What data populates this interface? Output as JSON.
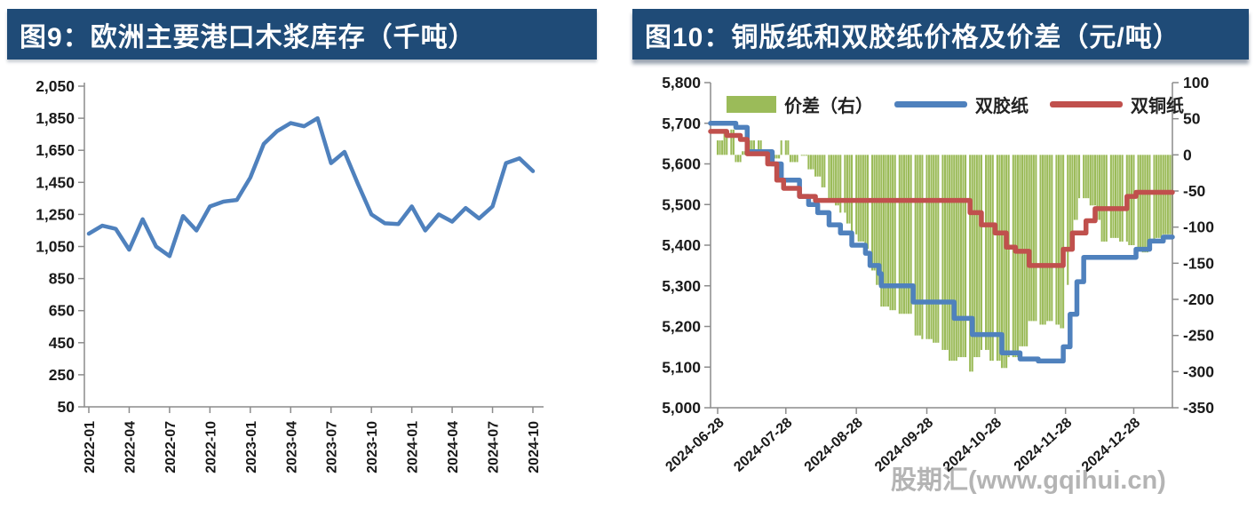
{
  "panels": {
    "left": {
      "title": "图9：欧洲主要港口木浆库存（千吨）"
    },
    "right": {
      "title": "图10：铜版纸和双胶纸价格及价差（元/吨）"
    }
  },
  "watermark": {
    "text": "股期汇(www.gqihui.cn)",
    "color": "#b4b4b4"
  },
  "colors": {
    "title_bar": "#1f4b77",
    "title_text": "#ffffff",
    "axis": "#8c8c8c",
    "tick_text": "#1a1a1a"
  },
  "chart_data": [
    {
      "type": "line",
      "title": "欧洲主要港口木浆库存",
      "unit": "千吨",
      "x": [
        "2022-01",
        "2022-02",
        "2022-03",
        "2022-04",
        "2022-05",
        "2022-06",
        "2022-07",
        "2022-08",
        "2022-09",
        "2022-10",
        "2022-11",
        "2022-12",
        "2023-01",
        "2023-02",
        "2023-03",
        "2023-04",
        "2023-05",
        "2023-06",
        "2023-07",
        "2023-08",
        "2023-09",
        "2023-10",
        "2023-11",
        "2023-12",
        "2024-01",
        "2024-02",
        "2024-03",
        "2024-04",
        "2024-05",
        "2024-06",
        "2024-07",
        "2024-08",
        "2024-09",
        "2024-10"
      ],
      "values": [
        1130,
        1180,
        1160,
        1030,
        1220,
        1050,
        990,
        1240,
        1150,
        1300,
        1330,
        1340,
        1480,
        1690,
        1770,
        1820,
        1800,
        1850,
        1570,
        1640,
        1440,
        1250,
        1195,
        1190,
        1300,
        1150,
        1250,
        1205,
        1290,
        1225,
        1300,
        1570,
        1600,
        1520
      ],
      "x_tick_labels": [
        "2022-01",
        "2022-04",
        "2022-07",
        "2022-10",
        "2023-01",
        "2023-04",
        "2023-07",
        "2023-10",
        "2024-01",
        "2024-04",
        "2024-07",
        "2024-10"
      ],
      "ylim": [
        50,
        2050
      ],
      "y_tick_values": [
        2050,
        1850,
        1650,
        1450,
        1250,
        1050,
        850,
        650,
        450,
        250,
        50
      ],
      "y_tick_labels": [
        "2,050",
        "1,850",
        "1,650",
        "1,450",
        "1,250",
        "1,050",
        "850",
        "650",
        "450",
        "250",
        "50"
      ],
      "line_color": "#4f81bd",
      "axis_color": "#8c8c8c",
      "grid": false,
      "legend_position": "none"
    },
    {
      "type": "combo",
      "title": "铜版纸和双胶纸价格及价差",
      "unit": "元/吨",
      "x_tick_labels": [
        "2024-06-28",
        "2024-07-28",
        "2024-08-28",
        "2024-09-28",
        "2024-10-28",
        "2024-11-28",
        "2024-12-28"
      ],
      "x_tick_days": [
        0,
        30,
        61,
        92,
        122,
        153,
        183
      ],
      "x_range_days": [
        0,
        200
      ],
      "left_ylim": [
        5000,
        5800
      ],
      "left_y_tick_values": [
        5800,
        5700,
        5600,
        5500,
        5400,
        5300,
        5200,
        5100,
        5000
      ],
      "left_y_tick_labels": [
        "5,800",
        "5,700",
        "5,600",
        "5,500",
        "5,400",
        "5,300",
        "5,200",
        "5,100",
        "5,000"
      ],
      "right_ylim": [
        -350,
        100
      ],
      "right_y_tick_values": [
        100,
        50,
        0,
        -50,
        -100,
        -150,
        -200,
        -250,
        -300,
        -350
      ],
      "right_y_tick_labels": [
        "100",
        "50",
        "0",
        "-50",
        "-100",
        "-150",
        "-200",
        "-250",
        "-300",
        "-350"
      ],
      "axis_color": "#8c8c8c",
      "grid": false,
      "legend_position": "top",
      "series": [
        {
          "name": "价差（右）",
          "type": "bar",
          "axis": "right",
          "color": "#9bbb59",
          "points": [
            [
              0,
              20
            ],
            [
              3,
              35
            ],
            [
              8,
              -10
            ],
            [
              11,
              5
            ],
            [
              14,
              20
            ],
            [
              20,
              0
            ],
            [
              24,
              -5
            ],
            [
              28,
              20
            ],
            [
              32,
              -10
            ],
            [
              36,
              0
            ],
            [
              40,
              -20
            ],
            [
              43,
              -30
            ],
            [
              46,
              -45
            ],
            [
              49,
              -60
            ],
            [
              52,
              -70
            ],
            [
              54,
              -80
            ],
            [
              57,
              -95
            ],
            [
              59,
              -110
            ],
            [
              62,
              -120
            ],
            [
              65,
              -130
            ],
            [
              67,
              -160
            ],
            [
              70,
              -180
            ],
            [
              72,
              -210
            ],
            [
              76,
              -215
            ],
            [
              80,
              -220
            ],
            [
              86,
              -250
            ],
            [
              90,
              -255
            ],
            [
              95,
              -260
            ],
            [
              98,
              -270
            ],
            [
              102,
              -285
            ],
            [
              106,
              -280
            ],
            [
              110,
              -300
            ],
            [
              113,
              -280
            ],
            [
              116,
              -270
            ],
            [
              120,
              -285
            ],
            [
              125,
              -295
            ],
            [
              128,
              -280
            ],
            [
              133,
              -265
            ],
            [
              137,
              -230
            ],
            [
              141,
              -235
            ],
            [
              145,
              -230
            ],
            [
              148,
              -235
            ],
            [
              151,
              -240
            ],
            [
              153,
              -180
            ],
            [
              155,
              -130
            ],
            [
              157,
              -90
            ],
            [
              159,
              -60
            ],
            [
              162,
              -60
            ],
            [
              164,
              -70
            ],
            [
              167,
              -90
            ],
            [
              169,
              -120
            ],
            [
              173,
              -115
            ],
            [
              177,
              -120
            ],
            [
              181,
              -125
            ],
            [
              184,
              -130
            ],
            [
              187,
              -135
            ],
            [
              190,
              -120
            ],
            [
              193,
              -115
            ],
            [
              196,
              -110
            ],
            [
              200,
              -115
            ]
          ]
        },
        {
          "name": "双胶纸",
          "type": "step-line",
          "axis": "left",
          "color": "#4f81bd",
          "points": [
            [
              0,
              5700
            ],
            [
              8,
              5690
            ],
            [
              13,
              5630
            ],
            [
              24,
              5600
            ],
            [
              28,
              5560
            ],
            [
              36,
              5520
            ],
            [
              40,
              5500
            ],
            [
              44,
              5480
            ],
            [
              49,
              5450
            ],
            [
              54,
              5430
            ],
            [
              59,
              5400
            ],
            [
              65,
              5380
            ],
            [
              67,
              5350
            ],
            [
              71,
              5330
            ],
            [
              72,
              5300
            ],
            [
              86,
              5260
            ],
            [
              104,
              5220
            ],
            [
              112,
              5180
            ],
            [
              125,
              5135
            ],
            [
              133,
              5120
            ],
            [
              141,
              5115
            ],
            [
              150,
              5115
            ],
            [
              152,
              5150
            ],
            [
              155,
              5230
            ],
            [
              158,
              5310
            ],
            [
              161,
              5370
            ],
            [
              184,
              5390
            ],
            [
              190,
              5410
            ],
            [
              196,
              5420
            ]
          ]
        },
        {
          "name": "双铜纸",
          "type": "step-line",
          "axis": "left",
          "color": "#c0504d",
          "points": [
            [
              0,
              5680
            ],
            [
              4,
              5670
            ],
            [
              10,
              5660
            ],
            [
              13,
              5625
            ],
            [
              22,
              5600
            ],
            [
              26,
              5560
            ],
            [
              29,
              5540
            ],
            [
              36,
              5520
            ],
            [
              43,
              5510
            ],
            [
              109,
              5510
            ],
            [
              111,
              5480
            ],
            [
              116,
              5450
            ],
            [
              122,
              5430
            ],
            [
              127,
              5395
            ],
            [
              131,
              5385
            ],
            [
              137,
              5350
            ],
            [
              150,
              5350
            ],
            [
              152,
              5390
            ],
            [
              156,
              5430
            ],
            [
              162,
              5460
            ],
            [
              166,
              5490
            ],
            [
              180,
              5520
            ],
            [
              184,
              5530
            ]
          ]
        }
      ]
    }
  ]
}
